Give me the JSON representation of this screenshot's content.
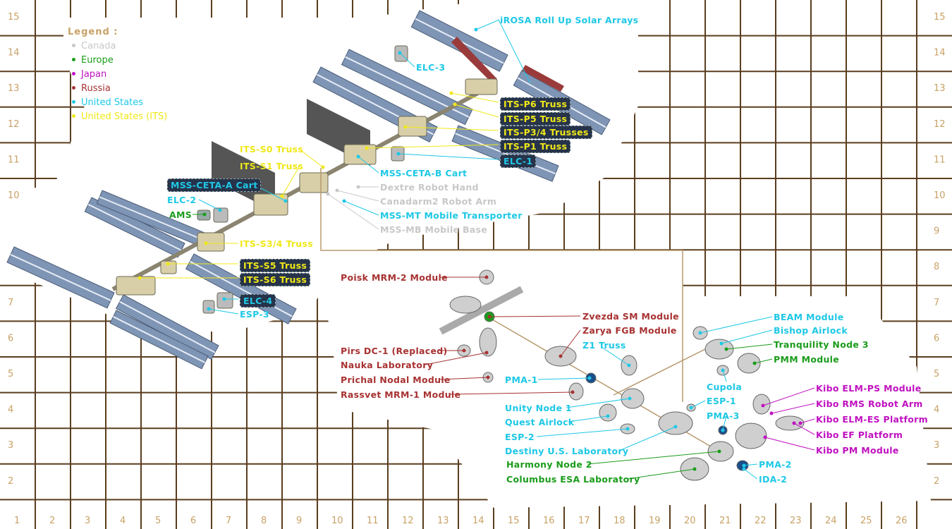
{
  "grid": {
    "columns": [
      "1",
      "2",
      "3",
      "4",
      "5",
      "6",
      "7",
      "8",
      "9",
      "10",
      "11",
      "12",
      "13",
      "14",
      "15",
      "16",
      "17",
      "18",
      "19",
      "20",
      "21",
      "22",
      "23",
      "24",
      "25",
      "26"
    ],
    "rows": [
      "15",
      "14",
      "13",
      "12",
      "11",
      "10",
      "9",
      "8",
      "7",
      "6",
      "5",
      "4",
      "3",
      "2"
    ]
  },
  "legend": {
    "title": "Legend :",
    "items": [
      {
        "label": "Canada",
        "color": "#c8c8c8"
      },
      {
        "label": "Europe",
        "color": "#1a9c1a"
      },
      {
        "label": "Japan",
        "color": "#c010c0"
      },
      {
        "label": "Russia",
        "color": "#a83232"
      },
      {
        "label": "United States",
        "color": "#1ec8e6"
      },
      {
        "label": "United States (ITS)",
        "color": "#f0e818"
      }
    ]
  },
  "colors": {
    "canada": "#c8c8c8",
    "europe": "#1a9c1a",
    "japan": "#c010c0",
    "russia": "#a83232",
    "us": "#1ec8e6",
    "its": "#f0e818",
    "grid": "#5a3d1e",
    "gridText": "#c8a165",
    "panel": "#7f95b5"
  },
  "labels": [
    {
      "id": "irosa",
      "text": "iROSA Roll Up Solar Arrays",
      "country": "us",
      "boxed": false
    },
    {
      "id": "elc3",
      "text": "ELC-3",
      "country": "us",
      "boxed": false
    },
    {
      "id": "p6",
      "text": "ITS-P6 Truss",
      "country": "its",
      "boxed": true
    },
    {
      "id": "p5",
      "text": "ITS-P5 Truss",
      "country": "its",
      "boxed": true
    },
    {
      "id": "p34",
      "text": "ITS-P3/4 Trusses",
      "country": "its",
      "boxed": true
    },
    {
      "id": "p1",
      "text": "ITS-P1 Truss",
      "country": "its",
      "boxed": true
    },
    {
      "id": "elc1",
      "text": "ELC-1",
      "country": "us",
      "boxed": true
    },
    {
      "id": "s0",
      "text": "ITS-S0 Truss",
      "country": "its",
      "boxed": false
    },
    {
      "id": "s1",
      "text": "ITS-S1 Truss",
      "country": "its",
      "boxed": false
    },
    {
      "id": "cetab",
      "text": "MSS-CETA-B Cart",
      "country": "us",
      "boxed": false
    },
    {
      "id": "cetaa",
      "text": "MSS-CETA-A Cart",
      "country": "us",
      "boxed": true
    },
    {
      "id": "dextre",
      "text": "Dextre Robot Hand",
      "country": "canada",
      "boxed": false
    },
    {
      "id": "canadarm",
      "text": "Canadarm2 Robot Arm",
      "country": "canada",
      "boxed": false
    },
    {
      "id": "elc2",
      "text": "ELC-2",
      "country": "us",
      "boxed": false
    },
    {
      "id": "mssmt",
      "text": "MSS-MT Mobile Transporter",
      "country": "us",
      "boxed": false
    },
    {
      "id": "ams",
      "text": "AMS",
      "country": "europe",
      "boxed": false
    },
    {
      "id": "mssmb",
      "text": "MSS-MB Mobile Base",
      "country": "canada",
      "boxed": false
    },
    {
      "id": "s34",
      "text": "ITS-S3/4 Truss",
      "country": "its",
      "boxed": false
    },
    {
      "id": "s5",
      "text": "ITS-S5 Truss",
      "country": "its",
      "boxed": true
    },
    {
      "id": "s6",
      "text": "ITS-S6 Truss",
      "country": "its",
      "boxed": true
    },
    {
      "id": "elc4",
      "text": "ELC-4",
      "country": "us",
      "boxed": true
    },
    {
      "id": "esp3",
      "text": "ESP-3",
      "country": "us",
      "boxed": false
    },
    {
      "id": "poisk",
      "text": "Poisk MRM-2 Module",
      "country": "russia",
      "boxed": false
    },
    {
      "id": "zvezda",
      "text": "Zvezda SM Module",
      "country": "russia",
      "boxed": false
    },
    {
      "id": "zarya",
      "text": "Zarya FGB Module",
      "country": "russia",
      "boxed": false
    },
    {
      "id": "z1",
      "text": "Z1 Truss",
      "country": "us",
      "boxed": false
    },
    {
      "id": "pirs",
      "text": "Pirs DC-1 (Replaced)",
      "country": "russia",
      "boxed": false
    },
    {
      "id": "nauka",
      "text": "Nauka Laboratory",
      "country": "russia",
      "boxed": false
    },
    {
      "id": "prichal",
      "text": "Prichal Nodal Module",
      "country": "russia",
      "boxed": false
    },
    {
      "id": "rassvet",
      "text": "Rassvet MRM-1 Module",
      "country": "russia",
      "boxed": false
    },
    {
      "id": "pma1",
      "text": "PMA-1",
      "country": "us",
      "boxed": false
    },
    {
      "id": "unity",
      "text": "Unity Node 1",
      "country": "us",
      "boxed": false
    },
    {
      "id": "quest",
      "text": "Quest Airlock",
      "country": "us",
      "boxed": false
    },
    {
      "id": "esp2",
      "text": "ESP-2",
      "country": "us",
      "boxed": false
    },
    {
      "id": "destiny",
      "text": "Destiny U.S. Laboratory",
      "country": "us",
      "boxed": false
    },
    {
      "id": "harmony",
      "text": "Harmony Node 2",
      "country": "europe",
      "boxed": false
    },
    {
      "id": "columbus",
      "text": "Columbus ESA Laboratory",
      "country": "europe",
      "boxed": false
    },
    {
      "id": "beam",
      "text": "BEAM Module",
      "country": "us",
      "boxed": false
    },
    {
      "id": "bishop",
      "text": "Bishop Airlock",
      "country": "us",
      "boxed": false
    },
    {
      "id": "tranq",
      "text": "Tranquility Node 3",
      "country": "europe",
      "boxed": false
    },
    {
      "id": "pmm",
      "text": "PMM Module",
      "country": "europe",
      "boxed": false
    },
    {
      "id": "cupola",
      "text": "Cupola",
      "country": "us",
      "boxed": false
    },
    {
      "id": "esp1",
      "text": "ESP-1",
      "country": "us",
      "boxed": false
    },
    {
      "id": "pma3",
      "text": "PMA-3",
      "country": "us",
      "boxed": false
    },
    {
      "id": "pma2",
      "text": "PMA-2",
      "country": "us",
      "boxed": false
    },
    {
      "id": "ida2",
      "text": "IDA-2",
      "country": "us",
      "boxed": false
    },
    {
      "id": "elmps",
      "text": "Kibo ELM-PS Module",
      "country": "japan",
      "boxed": false
    },
    {
      "id": "rms",
      "text": "Kibo RMS Robot Arm",
      "country": "japan",
      "boxed": false
    },
    {
      "id": "elmes",
      "text": "Kibo ELM-ES Platform",
      "country": "japan",
      "boxed": false
    },
    {
      "id": "ef",
      "text": "Kibo EF Platform",
      "country": "japan",
      "boxed": false
    },
    {
      "id": "pm",
      "text": "Kibo PM Module",
      "country": "japan",
      "boxed": false
    }
  ]
}
